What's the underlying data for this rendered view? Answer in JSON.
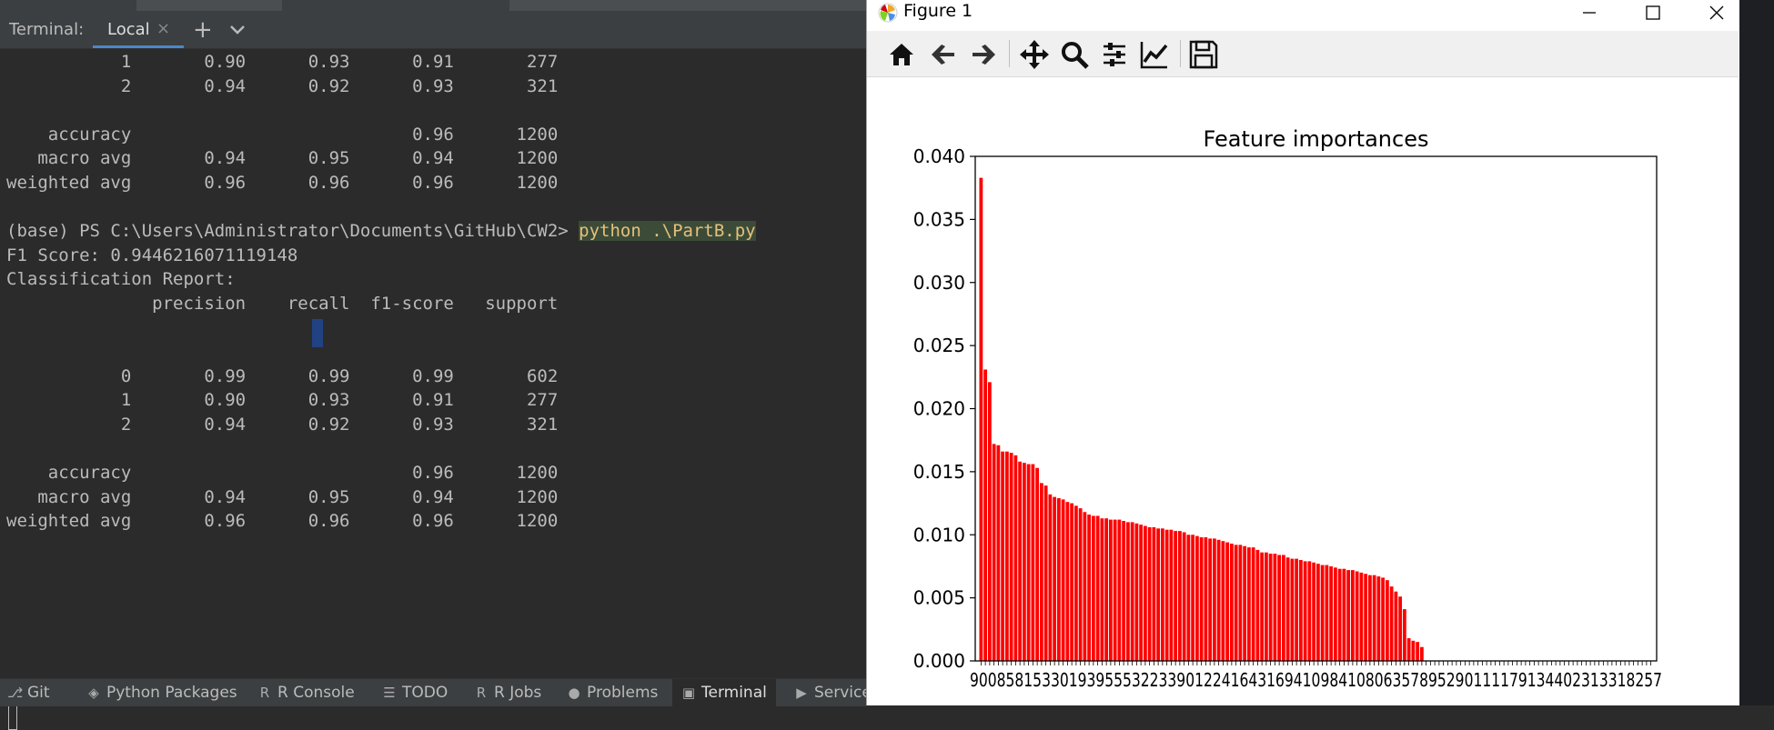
{
  "ide": {
    "tabbar": {
      "terminal_label": "Terminal:",
      "local_tab": "Local",
      "close_glyph": "×",
      "new_tab_glyph": "+"
    },
    "terminal_lines": [
      "           1       0.90      0.93      0.91       277",
      "           2       0.94      0.92      0.93       321",
      "",
      "    accuracy                           0.96      1200",
      "   macro avg       0.94      0.95      0.94      1200",
      "weighted avg       0.96      0.96      0.96      1200",
      "",
      "(base) PS C:\\Users\\Administrator\\Documents\\GitHub\\CW2> ",
      "F1 Score: 0.9446216071119148",
      "Classification Report:",
      "              precision    recall  f1-score   support",
      "",
      "",
      "           0       0.99      0.99      0.99       602",
      "           1       0.90      0.93      0.91       277",
      "           2       0.94      0.92      0.93       321",
      "",
      "    accuracy                           0.96      1200",
      "   macro avg       0.94      0.95      0.94      1200",
      "weighted avg       0.96      0.96      0.96      1200"
    ],
    "command": "python .\\PartB.py",
    "statusbar": [
      {
        "label": "Git",
        "icon": "git-branch-icon"
      },
      {
        "label": "Python Packages",
        "icon": "layers-icon"
      },
      {
        "label": "R Console",
        "icon": "r-icon"
      },
      {
        "label": "TODO",
        "icon": "list-icon"
      },
      {
        "label": "R Jobs",
        "icon": "r-icon"
      },
      {
        "label": "Problems",
        "icon": "alert-icon"
      },
      {
        "label": "Terminal",
        "icon": "terminal-icon",
        "active": true
      },
      {
        "label": "Services",
        "icon": "play-icon"
      }
    ]
  },
  "figure": {
    "window_title": "Figure 1",
    "toolbar": [
      "home-icon",
      "back-icon",
      "forward-icon",
      "pan-icon",
      "zoom-icon",
      "configure-subplots-icon",
      "edit-axis-icon",
      "save-icon"
    ]
  },
  "chart_data": {
    "type": "bar",
    "title": "Feature importances",
    "bar_color": "#ff0000",
    "ylim": [
      0,
      0.04
    ],
    "yticks": [
      "0.000",
      "0.005",
      "0.010",
      "0.015",
      "0.020",
      "0.025",
      "0.030",
      "0.035",
      "0.040"
    ],
    "xtick_labels_overlapping": "90085815330193955532233901224164316941098410806357895290111179134402313318257",
    "values": [
      0.0383,
      0.0231,
      0.0221,
      0.0172,
      0.0171,
      0.0166,
      0.0166,
      0.0165,
      0.0163,
      0.0158,
      0.0157,
      0.0156,
      0.0156,
      0.0153,
      0.0141,
      0.0139,
      0.0132,
      0.013,
      0.0129,
      0.0128,
      0.0126,
      0.0125,
      0.0123,
      0.0121,
      0.0118,
      0.0116,
      0.0115,
      0.0115,
      0.0113,
      0.0113,
      0.0112,
      0.0112,
      0.0112,
      0.0111,
      0.011,
      0.011,
      0.0109,
      0.0108,
      0.0107,
      0.0106,
      0.0106,
      0.0105,
      0.0105,
      0.0104,
      0.0104,
      0.0103,
      0.0103,
      0.0102,
      0.01,
      0.01,
      0.0099,
      0.0098,
      0.0098,
      0.0097,
      0.0097,
      0.0096,
      0.0095,
      0.0094,
      0.0093,
      0.0092,
      0.0092,
      0.0091,
      0.009,
      0.009,
      0.0088,
      0.0086,
      0.0086,
      0.0085,
      0.0085,
      0.0084,
      0.0084,
      0.0082,
      0.0081,
      0.0081,
      0.008,
      0.0079,
      0.0079,
      0.0078,
      0.0077,
      0.0076,
      0.0076,
      0.0075,
      0.0074,
      0.0073,
      0.0073,
      0.0072,
      0.0072,
      0.0071,
      0.007,
      0.0069,
      0.0068,
      0.0068,
      0.0067,
      0.0066,
      0.0064,
      0.0059,
      0.0055,
      0.0051,
      0.0041,
      0.0018,
      0.0016,
      0.0015,
      0.0011,
      0,
      0,
      0,
      0,
      0,
      0,
      0,
      0,
      0,
      0,
      0,
      0,
      0,
      0,
      0,
      0,
      0,
      0,
      0,
      0,
      0,
      0,
      0,
      0,
      0,
      0,
      0,
      0,
      0,
      0,
      0,
      0,
      0,
      0,
      0,
      0,
      0,
      0,
      0,
      0,
      0,
      0,
      0,
      0,
      0,
      0,
      0,
      0,
      0,
      0,
      0,
      0,
      0
    ]
  }
}
